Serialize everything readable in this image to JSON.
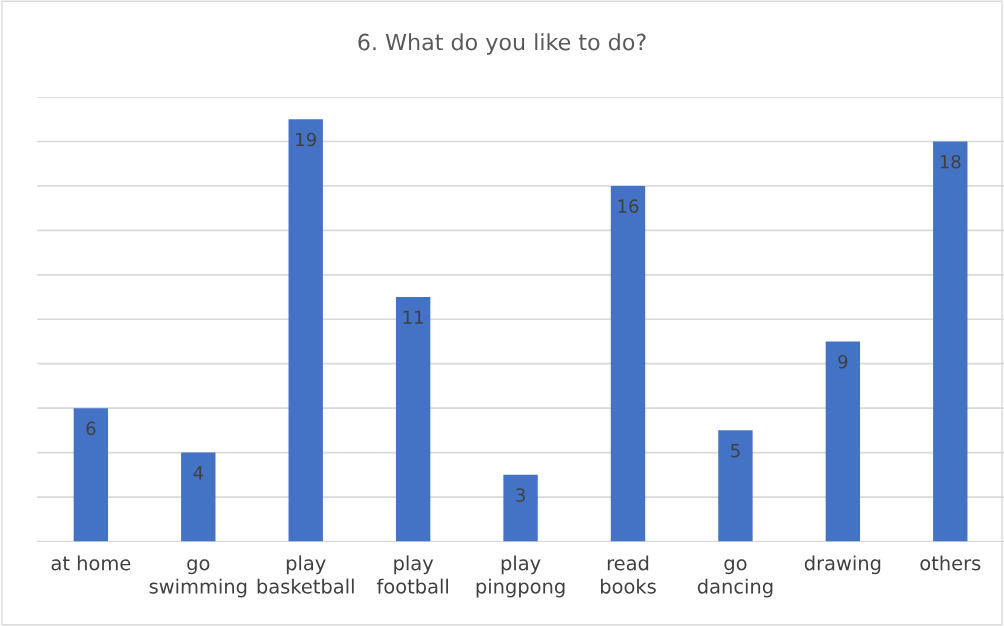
{
  "chart_data": {
    "type": "bar",
    "title": "6. What do you like to do?",
    "categories": [
      "at home",
      "go\nswimming",
      "play\nbasketball",
      "play\nfootball",
      "play\npingpong",
      "read\nbooks",
      "go\ndancing",
      "drawing",
      "others"
    ],
    "values": [
      6,
      4,
      19,
      11,
      3,
      16,
      5,
      9,
      18
    ],
    "color": "#4472c4",
    "ylim": [
      0,
      20
    ],
    "yticks": [
      {
        "value": 0,
        "label": null
      },
      {
        "value": 2,
        "label": null
      },
      {
        "value": 4,
        "label": null
      },
      {
        "value": 6,
        "label": null
      },
      {
        "value": 8,
        "label": null
      },
      {
        "value": 10,
        "label": null
      },
      {
        "value": 12,
        "label": null
      },
      {
        "value": 14,
        "label": null
      },
      {
        "value": 16,
        "label": null
      },
      {
        "value": 18,
        "label": null
      },
      {
        "value": 20,
        "label": null
      }
    ],
    "tick_labels": "x",
    "grid": "y",
    "data_labels": true
  }
}
